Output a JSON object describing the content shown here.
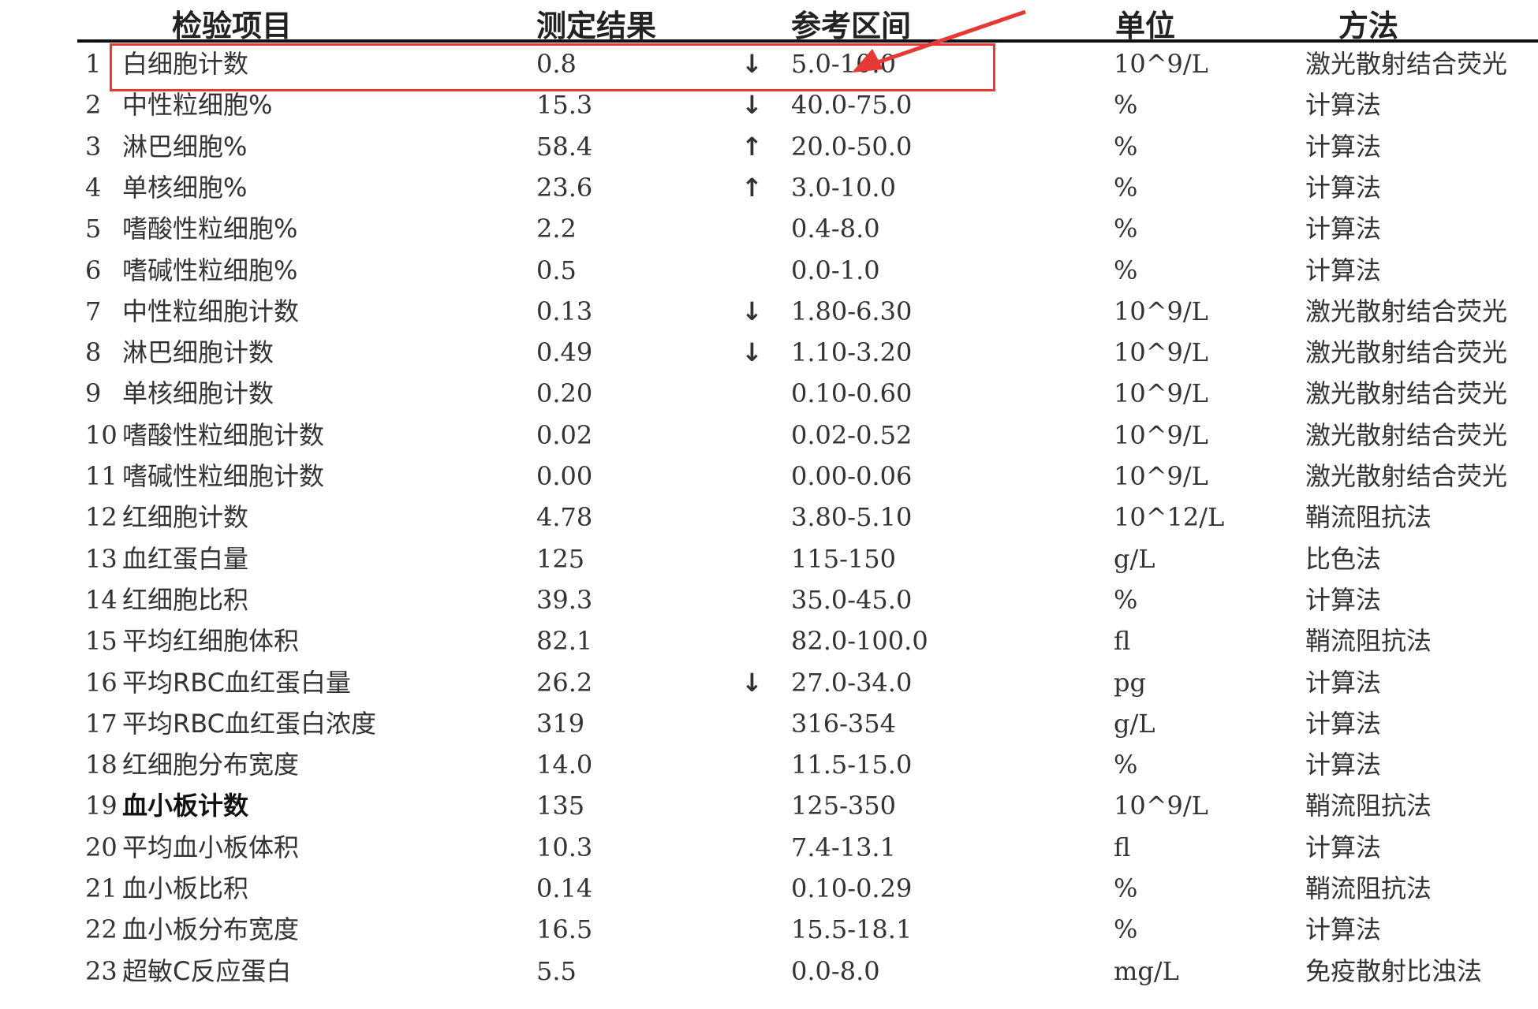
{
  "headers": {
    "item": "检验项目",
    "result": "测定结果",
    "reference": "参考区间",
    "unit": "单位",
    "method": "方法"
  },
  "annotation_color": "#e53935",
  "rows": [
    {
      "idx": "1",
      "name": "白细胞计数",
      "result": "0.8",
      "flag": "↓",
      "ref": "5.0-10.0",
      "unit": "10^9/L",
      "method": "激光散射结合荧光"
    },
    {
      "idx": "2",
      "name": "中性粒细胞%",
      "result": "15.3",
      "flag": "↓",
      "ref": "40.0-75.0",
      "unit": "%",
      "method": "计算法"
    },
    {
      "idx": "3",
      "name": "淋巴细胞%",
      "result": "58.4",
      "flag": "↑",
      "ref": "20.0-50.0",
      "unit": "%",
      "method": "计算法"
    },
    {
      "idx": "4",
      "name": "单核细胞%",
      "result": "23.6",
      "flag": "↑",
      "ref": "3.0-10.0",
      "unit": "%",
      "method": "计算法"
    },
    {
      "idx": "5",
      "name": "嗜酸性粒细胞%",
      "result": "2.2",
      "flag": "",
      "ref": "0.4-8.0",
      "unit": "%",
      "method": "计算法"
    },
    {
      "idx": "6",
      "name": "嗜碱性粒细胞%",
      "result": "0.5",
      "flag": "",
      "ref": "0.0-1.0",
      "unit": "%",
      "method": "计算法"
    },
    {
      "idx": "7",
      "name": "中性粒细胞计数",
      "result": "0.13",
      "flag": "↓",
      "ref": "1.80-6.30",
      "unit": "10^9/L",
      "method": "激光散射结合荧光"
    },
    {
      "idx": "8",
      "name": "淋巴细胞计数",
      "result": "0.49",
      "flag": "↓",
      "ref": "1.10-3.20",
      "unit": "10^9/L",
      "method": "激光散射结合荧光"
    },
    {
      "idx": "9",
      "name": "单核细胞计数",
      "result": "0.20",
      "flag": "",
      "ref": "0.10-0.60",
      "unit": "10^9/L",
      "method": "激光散射结合荧光"
    },
    {
      "idx": "10",
      "name": "嗜酸性粒细胞计数",
      "result": "0.02",
      "flag": "",
      "ref": "0.02-0.52",
      "unit": "10^9/L",
      "method": "激光散射结合荧光"
    },
    {
      "idx": "11",
      "name": "嗜碱性粒细胞计数",
      "result": "0.00",
      "flag": "",
      "ref": "0.00-0.06",
      "unit": "10^9/L",
      "method": "激光散射结合荧光"
    },
    {
      "idx": "12",
      "name": "红细胞计数",
      "result": "4.78",
      "flag": "",
      "ref": "3.80-5.10",
      "unit": "10^12/L",
      "method": "鞘流阻抗法"
    },
    {
      "idx": "13",
      "name": "血红蛋白量",
      "result": "125",
      "flag": "",
      "ref": "115-150",
      "unit": "g/L",
      "method": "比色法"
    },
    {
      "idx": "14",
      "name": "红细胞比积",
      "result": "39.3",
      "flag": "",
      "ref": "35.0-45.0",
      "unit": "%",
      "method": "计算法"
    },
    {
      "idx": "15",
      "name": "平均红细胞体积",
      "result": "82.1",
      "flag": "",
      "ref": "82.0-100.0",
      "unit": "fl",
      "method": "鞘流阻抗法"
    },
    {
      "idx": "16",
      "name": "平均RBC血红蛋白量",
      "result": "26.2",
      "flag": "↓",
      "ref": "27.0-34.0",
      "unit": "pg",
      "method": "计算法"
    },
    {
      "idx": "17",
      "name": "平均RBC血红蛋白浓度",
      "result": "319",
      "flag": "",
      "ref": "316-354",
      "unit": "g/L",
      "method": "计算法"
    },
    {
      "idx": "18",
      "name": "红细胞分布宽度",
      "result": "14.0",
      "flag": "",
      "ref": "11.5-15.0",
      "unit": "%",
      "method": "计算法"
    },
    {
      "idx": "19",
      "name": "血小板计数",
      "result": "135",
      "flag": "",
      "ref": "125-350",
      "unit": "10^9/L",
      "method": "鞘流阻抗法",
      "bold": true
    },
    {
      "idx": "20",
      "name": "平均血小板体积",
      "result": "10.3",
      "flag": "",
      "ref": "7.4-13.1",
      "unit": "fl",
      "method": "计算法"
    },
    {
      "idx": "21",
      "name": "血小板比积",
      "result": "0.14",
      "flag": "",
      "ref": "0.10-0.29",
      "unit": "%",
      "method": "鞘流阻抗法"
    },
    {
      "idx": "22",
      "name": "血小板分布宽度",
      "result": "16.5",
      "flag": "",
      "ref": "15.5-18.1",
      "unit": "%",
      "method": "计算法"
    },
    {
      "idx": "23",
      "name": "超敏C反应蛋白",
      "result": "5.5",
      "flag": "",
      "ref": "0.0-8.0",
      "unit": "mg/L",
      "method": "免疫散射比浊法"
    }
  ]
}
